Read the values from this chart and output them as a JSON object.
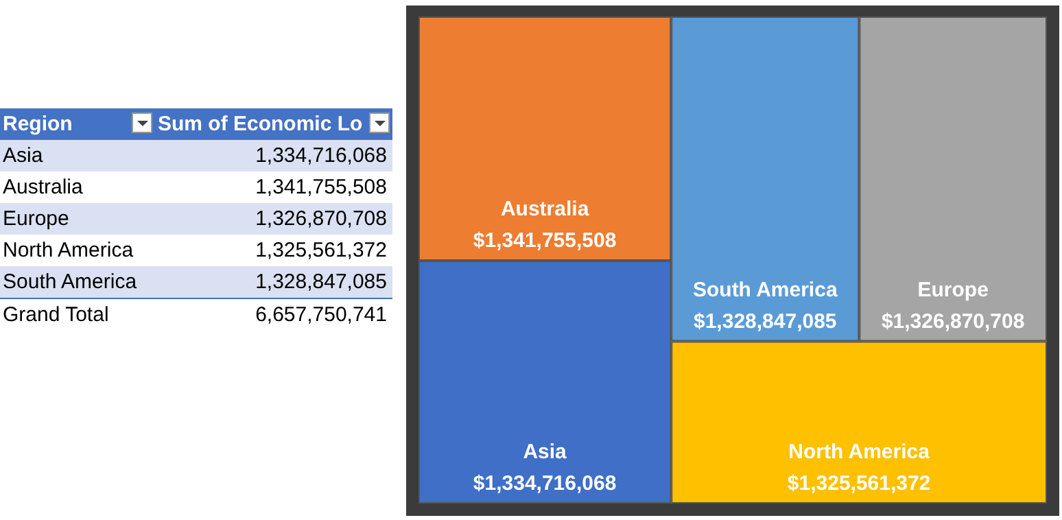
{
  "chart_data": {
    "type": "other",
    "categories": [
      "Asia",
      "Australia",
      "Europe",
      "North America",
      "South America"
    ],
    "values": [
      1334716068,
      1341755508,
      1326870708,
      1325561372,
      1328847085
    ],
    "colors": [
      "#3f6fc6",
      "#ed7d31",
      "#a5a5a5",
      "#ffc000",
      "#5b9bd5"
    ],
    "value_labels": [
      "$1,334,716,068",
      "$1,341,755,508",
      "$1,326,870,708",
      "$1,325,561,372",
      "$1,328,847,085"
    ],
    "annotations": [
      "Region",
      "Sum of Economic Lo",
      "Asia",
      "1,334,716,068",
      "Australia",
      "1,341,755,508",
      "Europe",
      "1,326,870,708",
      "North America",
      "1,325,561,372",
      "South America",
      "1,328,847,085",
      "Grand Total",
      "6,657,750,741"
    ]
  }
}
